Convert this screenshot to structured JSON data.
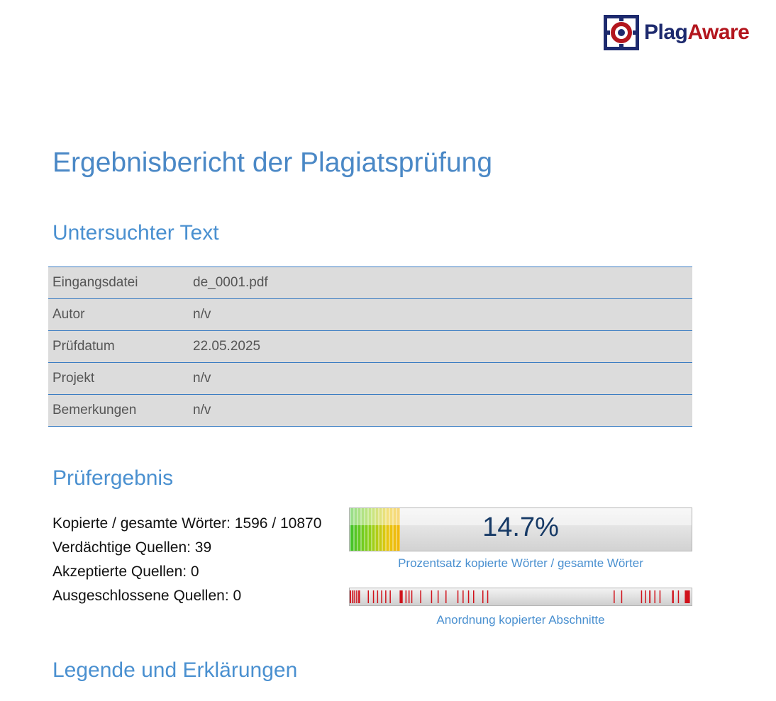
{
  "logo": {
    "part1": "Plag",
    "part2": "Aware"
  },
  "title": "Ergebnisbericht der Plagiatsprüfung",
  "sections": {
    "examined": "Untersuchter Text",
    "result": "Prüfergebnis",
    "legend": "Legende und Erklärungen"
  },
  "meta": [
    {
      "key": "Eingangsdatei",
      "value": "de_0001.pdf"
    },
    {
      "key": "Autor",
      "value": "n/v"
    },
    {
      "key": "Prüfdatum",
      "value": "22.05.2025"
    },
    {
      "key": "Projekt",
      "value": "n/v"
    },
    {
      "key": "Bemerkungen",
      "value": "n/v"
    }
  ],
  "stats": {
    "copied_total": "Kopierte / gesamte Wörter: 1596 / 10870",
    "suspicious": "Verdächtige Quellen: 39",
    "accepted": "Akzeptierte Quellen: 0",
    "excluded": "Ausgeschlossene Quellen: 0"
  },
  "gauge": {
    "label": "14.7%",
    "fraction": 0.147,
    "caption": "Prozentsatz kopierte Wörter / gesamte Wörter"
  },
  "distribution": {
    "caption": "Anordnung kopierter Abschnitte",
    "color": "#d0121b",
    "segments": [
      [
        0.0,
        0.004
      ],
      [
        0.007,
        0.011
      ],
      [
        0.013,
        0.016
      ],
      [
        0.019,
        0.022
      ],
      [
        0.025,
        0.03
      ],
      [
        0.053,
        0.056
      ],
      [
        0.068,
        0.071
      ],
      [
        0.08,
        0.083
      ],
      [
        0.092,
        0.095
      ],
      [
        0.104,
        0.107
      ],
      [
        0.117,
        0.12
      ],
      [
        0.146,
        0.155
      ],
      [
        0.163,
        0.166
      ],
      [
        0.172,
        0.175
      ],
      [
        0.18,
        0.183
      ],
      [
        0.206,
        0.209
      ],
      [
        0.238,
        0.241
      ],
      [
        0.257,
        0.26
      ],
      [
        0.28,
        0.283
      ],
      [
        0.315,
        0.318
      ],
      [
        0.33,
        0.333
      ],
      [
        0.346,
        0.349
      ],
      [
        0.361,
        0.364
      ],
      [
        0.388,
        0.391
      ],
      [
        0.402,
        0.405
      ],
      [
        0.772,
        0.775
      ],
      [
        0.794,
        0.797
      ],
      [
        0.852,
        0.855
      ],
      [
        0.864,
        0.867
      ],
      [
        0.876,
        0.88
      ],
      [
        0.891,
        0.894
      ],
      [
        0.906,
        0.909
      ],
      [
        0.943,
        0.948
      ],
      [
        0.96,
        0.963
      ],
      [
        0.98,
        0.995
      ]
    ]
  }
}
